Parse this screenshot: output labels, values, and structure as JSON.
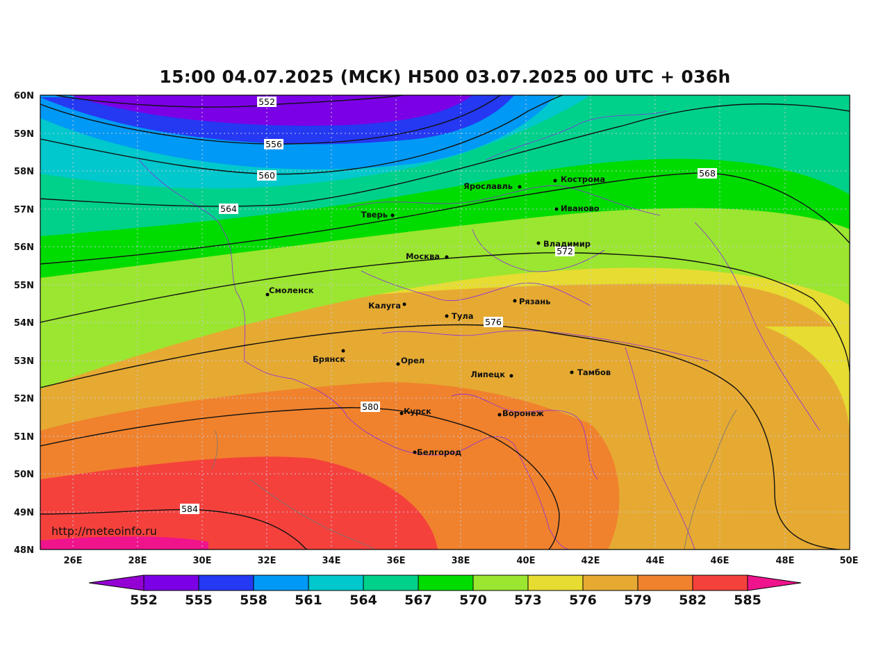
{
  "title": "15:00 04.07.2025 (МСК) H500  03.07.2025 00 UTC + 036h",
  "watermark": "http://meteoinfo.ru",
  "lat_labels": [
    "60N",
    "59N",
    "58N",
    "57N",
    "56N",
    "55N",
    "54N",
    "53N",
    "52N",
    "51N",
    "50N",
    "49N",
    "48N"
  ],
  "lon_labels": [
    "26E",
    "28E",
    "30E",
    "32E",
    "34E",
    "36E",
    "38E",
    "40E",
    "42E",
    "44E",
    "46E",
    "48E",
    "50E"
  ],
  "contour_labels": [
    "552",
    "556",
    "560",
    "564",
    "568",
    "572",
    "576",
    "580",
    "584"
  ],
  "cities": [
    {
      "name": "Кострома"
    },
    {
      "name": "Ярославль"
    },
    {
      "name": "Иваново"
    },
    {
      "name": "Тверь"
    },
    {
      "name": "Владимир"
    },
    {
      "name": "Москва"
    },
    {
      "name": "Смоленск"
    },
    {
      "name": "Калуга"
    },
    {
      "name": "Рязань"
    },
    {
      "name": "Тула"
    },
    {
      "name": "Брянск"
    },
    {
      "name": "Орел"
    },
    {
      "name": "Липецк"
    },
    {
      "name": "Тамбов"
    },
    {
      "name": "Курск"
    },
    {
      "name": "Воронеж"
    },
    {
      "name": "Белгород"
    }
  ],
  "colorbar": {
    "labels": [
      "552",
      "555",
      "558",
      "561",
      "564",
      "567",
      "570",
      "573",
      "576",
      "579",
      "582",
      "585"
    ],
    "colors": [
      "#9400d3",
      "#7b00e6",
      "#2538f2",
      "#0099f5",
      "#00c8cc",
      "#00d18a",
      "#00dc00",
      "#9be630",
      "#e6dc32",
      "#e6aa32",
      "#f0822d",
      "#f5413c",
      "#f0148c"
    ]
  }
}
